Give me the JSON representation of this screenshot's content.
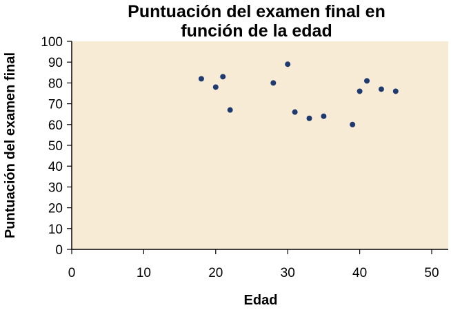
{
  "chart_data": {
    "type": "scatter",
    "title_lines": [
      "Puntuación del examen final en",
      "función de la edad"
    ],
    "xlabel": "Edad",
    "ylabel": "Puntuación del examen final",
    "xlim": [
      0,
      50
    ],
    "ylim": [
      0,
      100
    ],
    "x_ticks": [
      0,
      10,
      20,
      30,
      40,
      50
    ],
    "y_ticks": [
      0,
      10,
      20,
      30,
      40,
      50,
      60,
      70,
      80,
      90,
      100
    ],
    "grid": false,
    "legend": "none",
    "colors": {
      "plot_background": "#f8ebd6",
      "point": "#1e3a6e",
      "axis": "#000000"
    },
    "points": [
      {
        "x": 18,
        "y": 82
      },
      {
        "x": 20,
        "y": 78
      },
      {
        "x": 21,
        "y": 83
      },
      {
        "x": 22,
        "y": 67
      },
      {
        "x": 28,
        "y": 80
      },
      {
        "x": 30,
        "y": 89
      },
      {
        "x": 31,
        "y": 66
      },
      {
        "x": 33,
        "y": 63
      },
      {
        "x": 35,
        "y": 64
      },
      {
        "x": 39,
        "y": 60
      },
      {
        "x": 40,
        "y": 76
      },
      {
        "x": 41,
        "y": 81
      },
      {
        "x": 43,
        "y": 77
      },
      {
        "x": 45,
        "y": 76
      }
    ]
  }
}
